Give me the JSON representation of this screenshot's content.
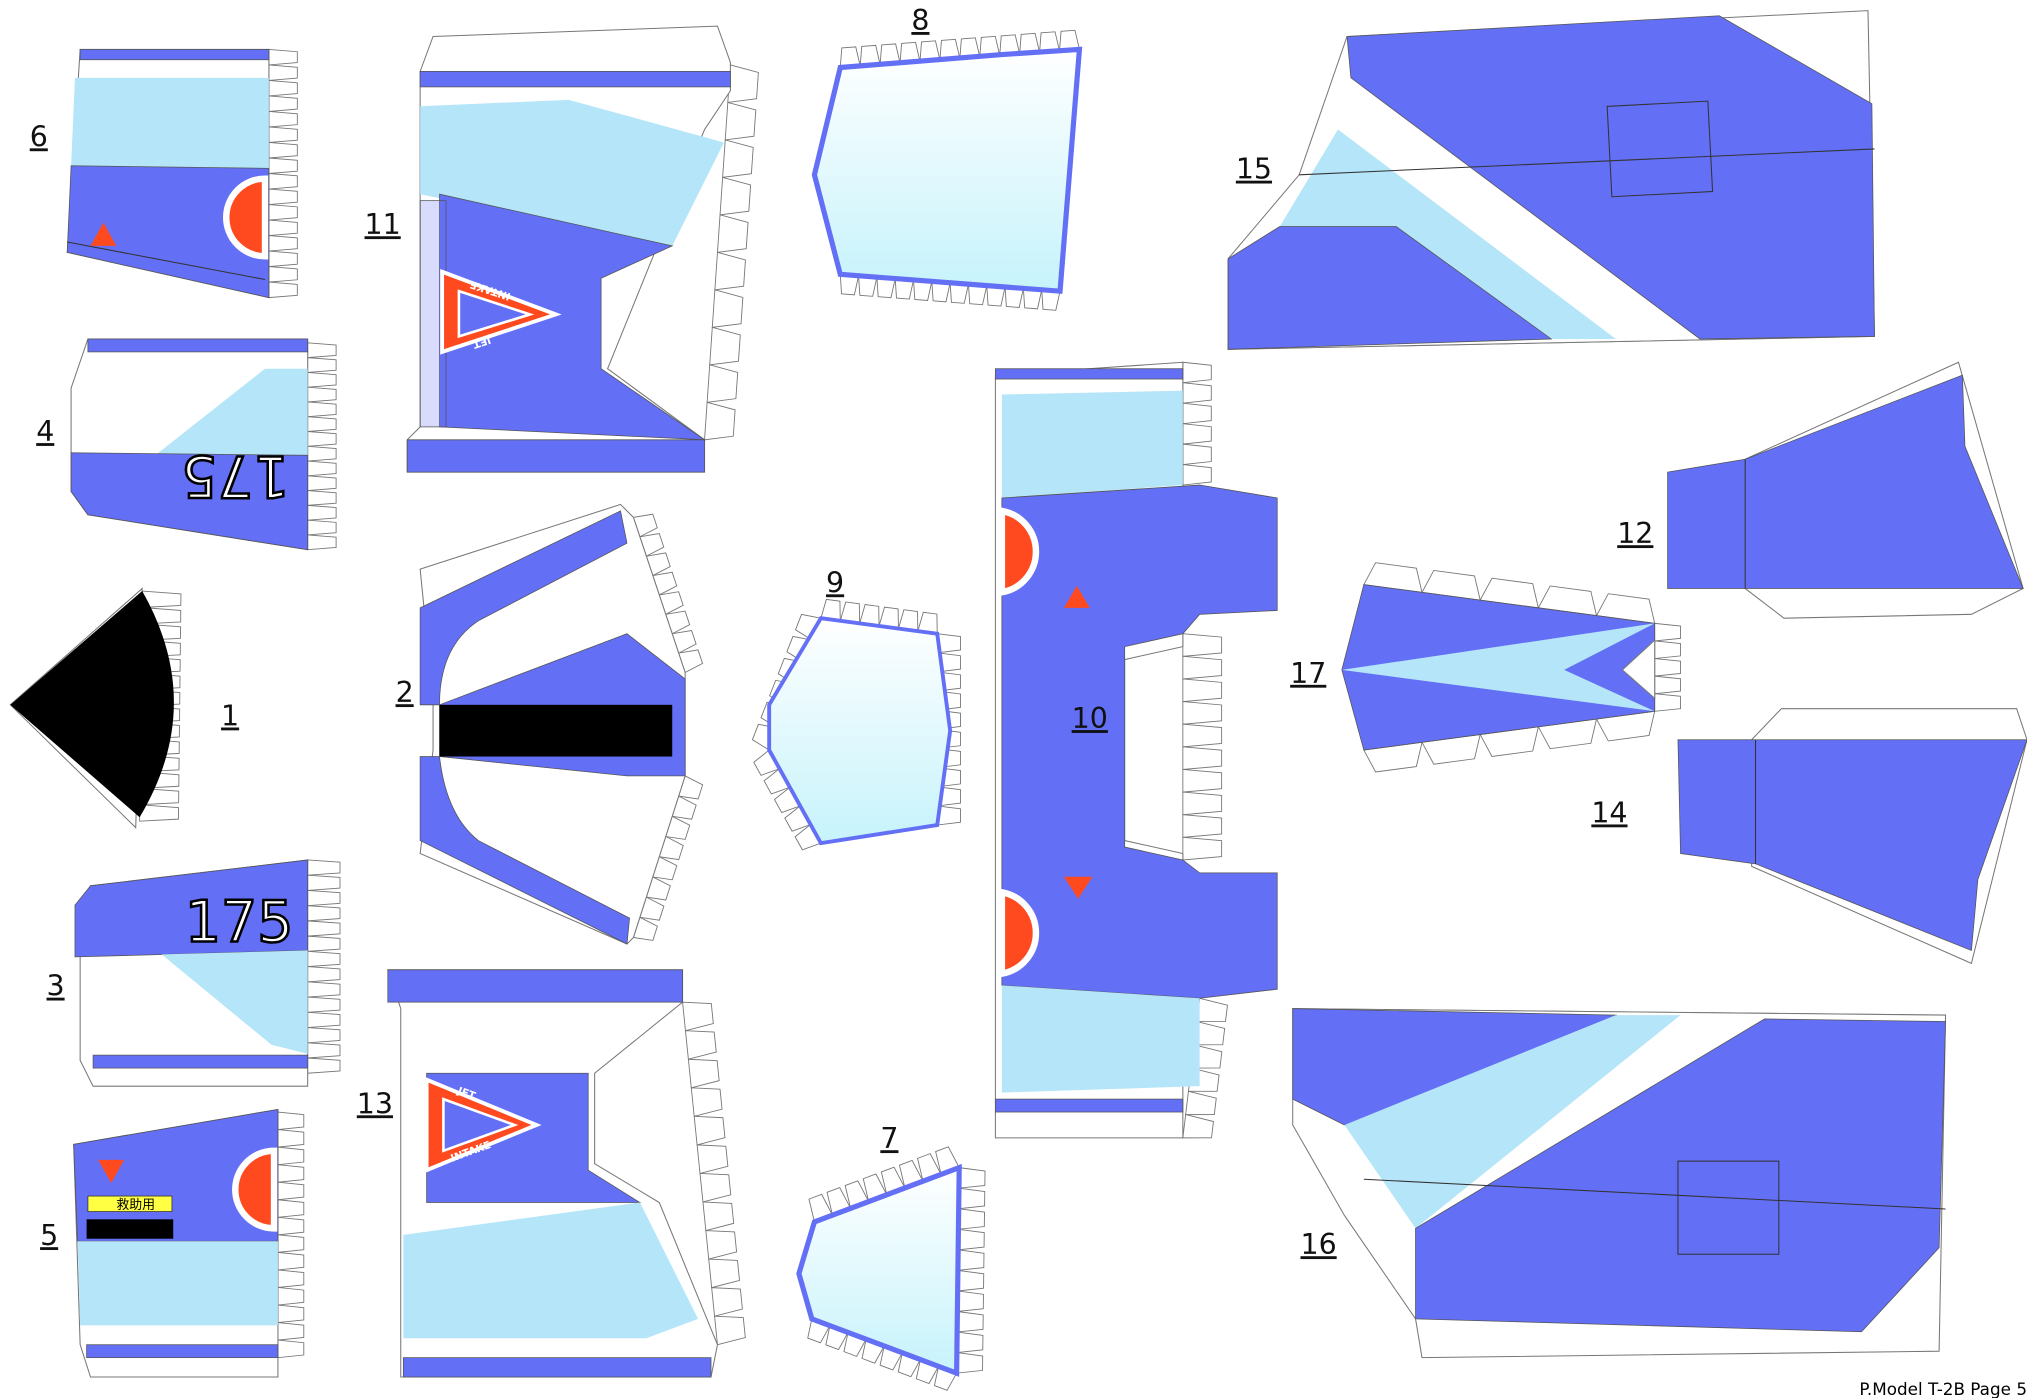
{
  "parts": [
    "1",
    "2",
    "3",
    "4",
    "5",
    "6",
    "7",
    "8",
    "9",
    "10",
    "11",
    "12",
    "13",
    "14",
    "15",
    "16",
    "17"
  ],
  "markings": {
    "number": "175",
    "jet": "JET",
    "intake": "INTAKE",
    "rescue": "救助用"
  },
  "footer": "P.Model T-2B Page 5"
}
